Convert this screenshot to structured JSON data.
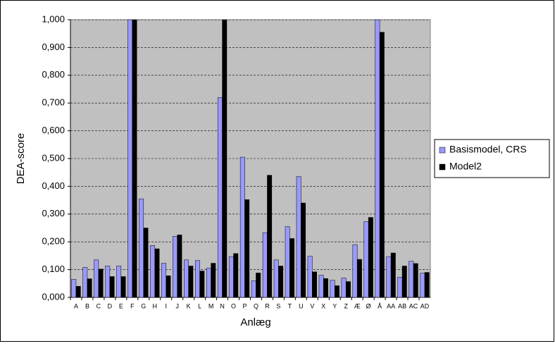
{
  "chart_data": {
    "type": "bar",
    "x_label": "Anlæg",
    "y_label": "DEA-score",
    "categories": [
      "A",
      "B",
      "C",
      "D",
      "E",
      "F",
      "G",
      "H",
      "I",
      "J",
      "K",
      "L",
      "M",
      "N",
      "O",
      "P",
      "Q",
      "R",
      "S",
      "T",
      "U",
      "V",
      "X",
      "Y",
      "Z",
      "Æ",
      "Ø",
      "Å",
      "AA",
      "AB",
      "AC",
      "AD"
    ],
    "series": [
      {
        "name": "Basismodel, CRS",
        "color": "#9999ff",
        "values": [
          0.065,
          0.108,
          0.135,
          0.113,
          0.113,
          1.0,
          0.355,
          0.187,
          0.123,
          0.22,
          0.135,
          0.133,
          0.105,
          0.72,
          0.147,
          0.505,
          0.06,
          0.233,
          0.135,
          0.255,
          0.435,
          0.148,
          0.08,
          0.062,
          0.07,
          0.19,
          0.273,
          1.0,
          0.147,
          0.073,
          0.13,
          0.087
        ]
      },
      {
        "name": "Model2",
        "color": "#000000",
        "values": [
          0.04,
          0.067,
          0.102,
          0.075,
          0.075,
          1.0,
          0.25,
          0.175,
          0.078,
          0.225,
          0.113,
          0.095,
          0.123,
          1.0,
          0.158,
          0.352,
          0.088,
          0.44,
          0.113,
          0.212,
          0.34,
          0.092,
          0.068,
          0.042,
          0.057,
          0.137,
          0.288,
          0.955,
          0.16,
          0.113,
          0.122,
          0.09
        ]
      }
    ],
    "ylim": [
      0,
      1
    ],
    "yticks": [
      {
        "value": 0,
        "label": "0,000"
      },
      {
        "value": 0.1,
        "label": "0,100"
      },
      {
        "value": 0.2,
        "label": "0,200"
      },
      {
        "value": 0.3,
        "label": "0,300"
      },
      {
        "value": 0.4,
        "label": "0,400"
      },
      {
        "value": 0.5,
        "label": "0,500"
      },
      {
        "value": 0.6,
        "label": "0,600"
      },
      {
        "value": 0.7,
        "label": "0,700"
      },
      {
        "value": 0.8,
        "label": "0,800"
      },
      {
        "value": 0.9,
        "label": "0,900"
      },
      {
        "value": 1,
        "label": "1,000"
      }
    ],
    "grid": true,
    "legend": "right",
    "plot_background": "#c0c0c0"
  }
}
